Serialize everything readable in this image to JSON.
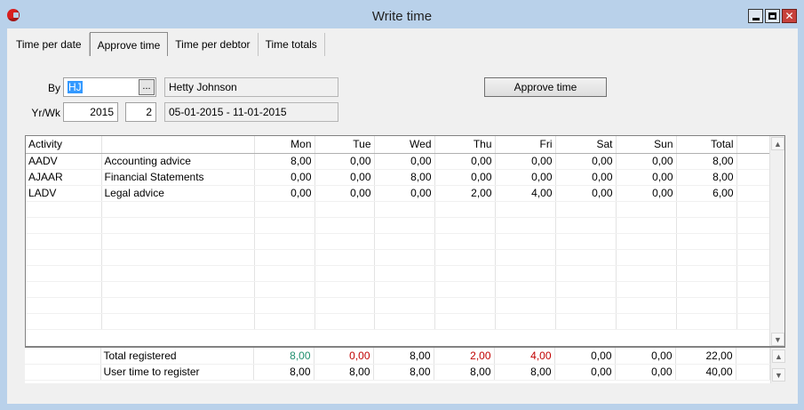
{
  "window": {
    "title": "Write time"
  },
  "tabs": [
    {
      "label": "Time per date",
      "active": false
    },
    {
      "label": "Approve time",
      "active": true
    },
    {
      "label": "Time per debtor",
      "active": false
    },
    {
      "label": "Time totals",
      "active": false
    }
  ],
  "form": {
    "by_label": "By",
    "by_value": "HJ",
    "browse_label": "...",
    "employee_name": "Hetty Johnson",
    "yrwk_label": "Yr/Wk",
    "year": "2015",
    "week": "2",
    "date_range": "05-01-2015  -  11-01-2015",
    "approve_button": "Approve time"
  },
  "grid": {
    "headers": [
      "Activity",
      "",
      "Mon",
      "Tue",
      "Wed",
      "Thu",
      "Fri",
      "Sat",
      "Sun",
      "Total"
    ],
    "rows": [
      [
        "AADV",
        "Accounting advice",
        "8,00",
        "0,00",
        "0,00",
        "0,00",
        "0,00",
        "0,00",
        "0,00",
        "8,00"
      ],
      [
        "AJAAR",
        "Financial Statements",
        "0,00",
        "0,00",
        "8,00",
        "0,00",
        "0,00",
        "0,00",
        "0,00",
        "8,00"
      ],
      [
        "LADV",
        "Legal advice",
        "0,00",
        "0,00",
        "0,00",
        "2,00",
        "4,00",
        "0,00",
        "0,00",
        "6,00"
      ]
    ],
    "totals": [
      [
        "",
        "Total registered",
        "8,00",
        "0,00",
        "8,00",
        "2,00",
        "4,00",
        "0,00",
        "0,00",
        "22,00"
      ],
      [
        "",
        "User time to register",
        "8,00",
        "8,00",
        "8,00",
        "8,00",
        "8,00",
        "0,00",
        "0,00",
        "40,00"
      ]
    ],
    "status_colors": {
      "match": "#1f8f6e",
      "mismatch": "#c00000"
    }
  }
}
